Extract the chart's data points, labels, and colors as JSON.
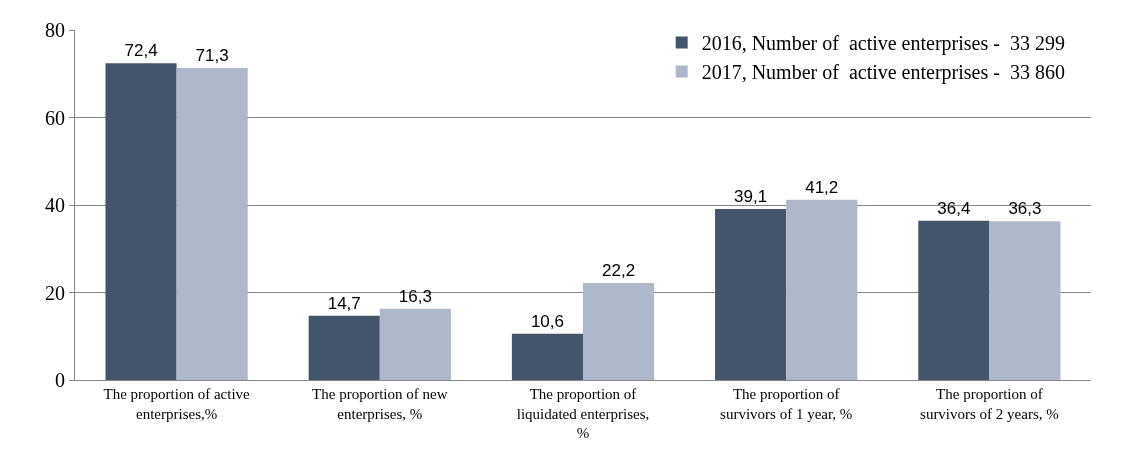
{
  "chart_data": {
    "type": "bar",
    "categories": [
      "The proportion of active enterprises,%",
      "The proportion of new enterprises, %",
      "The proportion of liquidated enterprises, %",
      "The proportion of survivors of 1 year, %",
      "The proportion of survivors of 2 years, %"
    ],
    "series": [
      {
        "name": "2016, Number of  active enterprises -  33 299",
        "color": "#44546a",
        "values": [
          72.4,
          14.7,
          10.6,
          39.1,
          36.4
        ],
        "value_labels": [
          "72,4",
          "14,7",
          "10,6",
          "39,1",
          "36,4"
        ]
      },
      {
        "name": "2017, Number of  active enterprises -  33 860",
        "color": "#adb9ca",
        "values": [
          71.3,
          16.3,
          22.2,
          41.2,
          36.3
        ],
        "value_labels": [
          "71,3",
          "16,3",
          "22,2",
          "41,2",
          "36,3"
        ]
      }
    ],
    "ylim": [
      0,
      80
    ],
    "yticks": [
      0,
      20,
      40,
      60,
      80
    ],
    "grid": "y",
    "legend": "top right"
  }
}
